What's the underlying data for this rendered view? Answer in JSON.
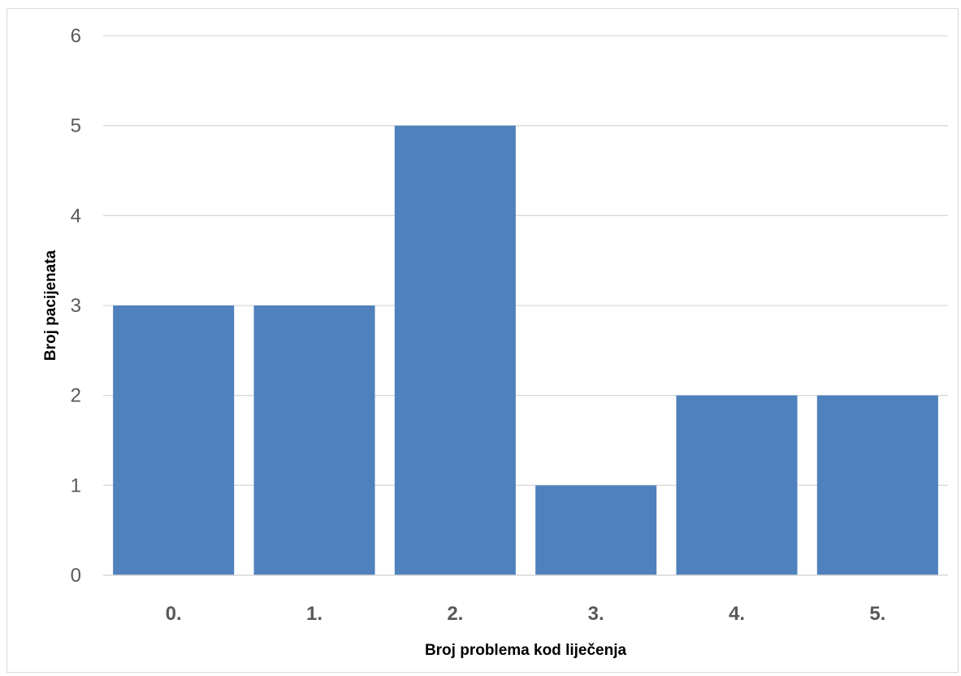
{
  "chart_data": {
    "type": "bar",
    "title": "",
    "xlabel": "Broj problema kod liječenja",
    "ylabel": "Broj pacijenata",
    "categories": [
      "0.",
      "1.",
      "2.",
      "3.",
      "4.",
      "5."
    ],
    "values": [
      3,
      3,
      5,
      1,
      2,
      2
    ],
    "ylim": [
      0,
      6
    ],
    "yticks": [
      "0",
      "1",
      "2",
      "3",
      "4",
      "5",
      "6"
    ],
    "grid": true,
    "legend": "none",
    "colors": {
      "bar": "#4f81bd",
      "grid": "#d9d9d9",
      "tick_text": "#595959"
    }
  }
}
